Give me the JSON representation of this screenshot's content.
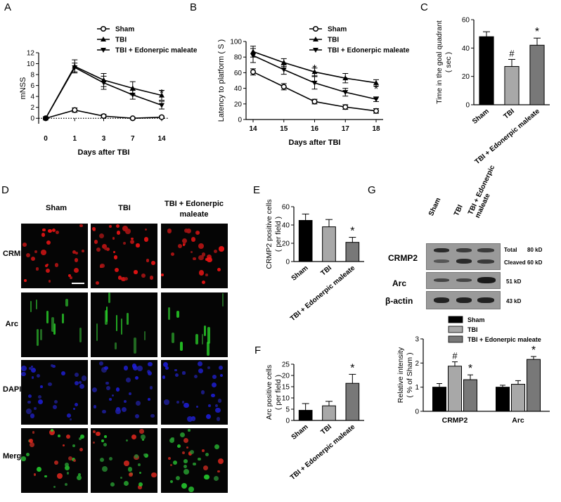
{
  "panels": {
    "A": "A",
    "B": "B",
    "C": "C",
    "D": "D",
    "E": "E",
    "F": "F",
    "G": "G"
  },
  "colors": {
    "sham": "#000000",
    "tbi": "#a8a8a8",
    "edo": "#787878",
    "line": "#000000"
  },
  "panelA": {
    "chart_data": {
      "type": "line",
      "xlabel": "Days after TBI",
      "ylabel": "mNSS",
      "x": [
        0,
        1,
        3,
        7,
        14
      ],
      "ylim": [
        -1,
        12
      ],
      "yticks": [
        0,
        2,
        4,
        6,
        8,
        10,
        12
      ],
      "series": [
        {
          "name": "Sham",
          "marker": "circle",
          "values": [
            0,
            1.5,
            0.4,
            0,
            0.2
          ],
          "err": [
            0.15,
            0.4,
            0.3,
            0.15,
            0.2
          ]
        },
        {
          "name": "TBI",
          "marker": "triangle-up",
          "values": [
            0,
            9.5,
            7.0,
            5.5,
            4.2
          ],
          "err": [
            0.15,
            1.2,
            1.2,
            1.2,
            0.9
          ]
        },
        {
          "name": "TBI + Edonerpic maleate",
          "marker": "triangle-down",
          "values": [
            0,
            9.3,
            6.5,
            4.3,
            2.4
          ],
          "err": [
            0.15,
            0.8,
            1.2,
            0.8,
            0.7
          ]
        }
      ],
      "annotations": [
        {
          "x": 14,
          "text": "*"
        }
      ],
      "dotted_zero": true
    }
  },
  "panelB": {
    "chart_data": {
      "type": "line",
      "xlabel": "Days after TBI",
      "ylabel": "Latency to platform ( S )",
      "x": [
        14,
        15,
        16,
        17,
        18
      ],
      "ylim": [
        0,
        100
      ],
      "yticks": [
        0,
        20,
        40,
        60,
        80,
        100
      ],
      "series": [
        {
          "name": "Sham",
          "marker": "circle",
          "values": [
            61,
            42,
            23,
            16,
            11
          ],
          "err": [
            4,
            4,
            3,
            3,
            3
          ]
        },
        {
          "name": "TBI",
          "marker": "triangle-up",
          "values": [
            87,
            73,
            61,
            53,
            47
          ],
          "err": [
            7,
            5,
            5,
            6,
            4
          ]
        },
        {
          "name": "TBI + Edonerpic maleate",
          "marker": "triangle-down",
          "values": [
            82,
            64,
            47,
            35,
            26
          ],
          "err": [
            9,
            6,
            8,
            5,
            3
          ]
        }
      ],
      "annotations": [
        {
          "x": 16,
          "text": "*"
        },
        {
          "x": 17,
          "text": "*"
        },
        {
          "x": 18,
          "text": "*"
        }
      ]
    }
  },
  "panelC": {
    "chart_data": {
      "type": "bar",
      "ylabel": "Time in the goal quadrant ( sec )",
      "categories": [
        "Sham",
        "TBI",
        "TBI + Edonerpic maleate"
      ],
      "values": [
        48,
        27,
        42
      ],
      "err": [
        3.5,
        5,
        5
      ],
      "ylim": [
        0,
        60
      ],
      "yticks": [
        0,
        20,
        40,
        60
      ],
      "annotations": [
        "",
        "#",
        "*"
      ]
    }
  },
  "panelD": {
    "columns": [
      "Sham",
      "TBI",
      "TBI + Edonerpic\nmaleate"
    ],
    "rows": [
      "CRMP2",
      "Arc",
      "DAPI",
      "Merge"
    ]
  },
  "panelE": {
    "chart_data": {
      "type": "bar",
      "ylabel": "CRMP2 positive cells ( per field )",
      "categories": [
        "Sham",
        "TBI",
        "TBI + Edonerpic maleate"
      ],
      "values": [
        45,
        38,
        21
      ],
      "err": [
        7,
        8,
        5.5
      ],
      "ylim": [
        0,
        60
      ],
      "yticks": [
        0,
        20,
        40,
        60
      ],
      "annotations": [
        "",
        "",
        "*"
      ]
    }
  },
  "panelF": {
    "chart_data": {
      "type": "bar",
      "ylabel": "Arc positive cells ( per field )",
      "categories": [
        "Sham",
        "TBI",
        "TBI + Edonerpic maleate"
      ],
      "values": [
        4.5,
        6.5,
        16.5
      ],
      "err": [
        3,
        2,
        4
      ],
      "ylim": [
        0,
        25
      ],
      "yticks": [
        0,
        5,
        10,
        15,
        20,
        25
      ],
      "annotations": [
        "",
        "",
        "*"
      ]
    }
  },
  "panelG": {
    "blot": {
      "lanes": [
        "Sham",
        "TBI",
        "TBI + Edonerpic\nmaleate"
      ],
      "rows": [
        "CRMP2",
        "Arc",
        "β-actin"
      ],
      "right_labels": {
        "total": "Total",
        "total_kd": "80 kD",
        "cleaved": "Cleaved",
        "cleaved_kd": "60 kD",
        "arc_kd": "51 kD",
        "actin_kd": "43 kD"
      }
    },
    "chart_data": {
      "type": "bar",
      "ylabel": "Relative intensity ( % of Sham )",
      "categories": [
        "CRMP2",
        "Arc"
      ],
      "ylim": [
        0,
        3
      ],
      "yticks": [
        0,
        1,
        2,
        3
      ],
      "series": [
        {
          "name": "Sham",
          "values": [
            1.0,
            1.0
          ],
          "err": [
            0.15,
            0.08
          ]
        },
        {
          "name": "TBI",
          "values": [
            1.87,
            1.12
          ],
          "err": [
            0.18,
            0.15
          ]
        },
        {
          "name": "TBI + Edonerpic maleate",
          "values": [
            1.31,
            2.15
          ],
          "err": [
            0.2,
            0.12
          ]
        }
      ],
      "annotations": [
        [
          "",
          "#",
          "*"
        ],
        [
          "",
          "",
          "*"
        ]
      ]
    }
  }
}
